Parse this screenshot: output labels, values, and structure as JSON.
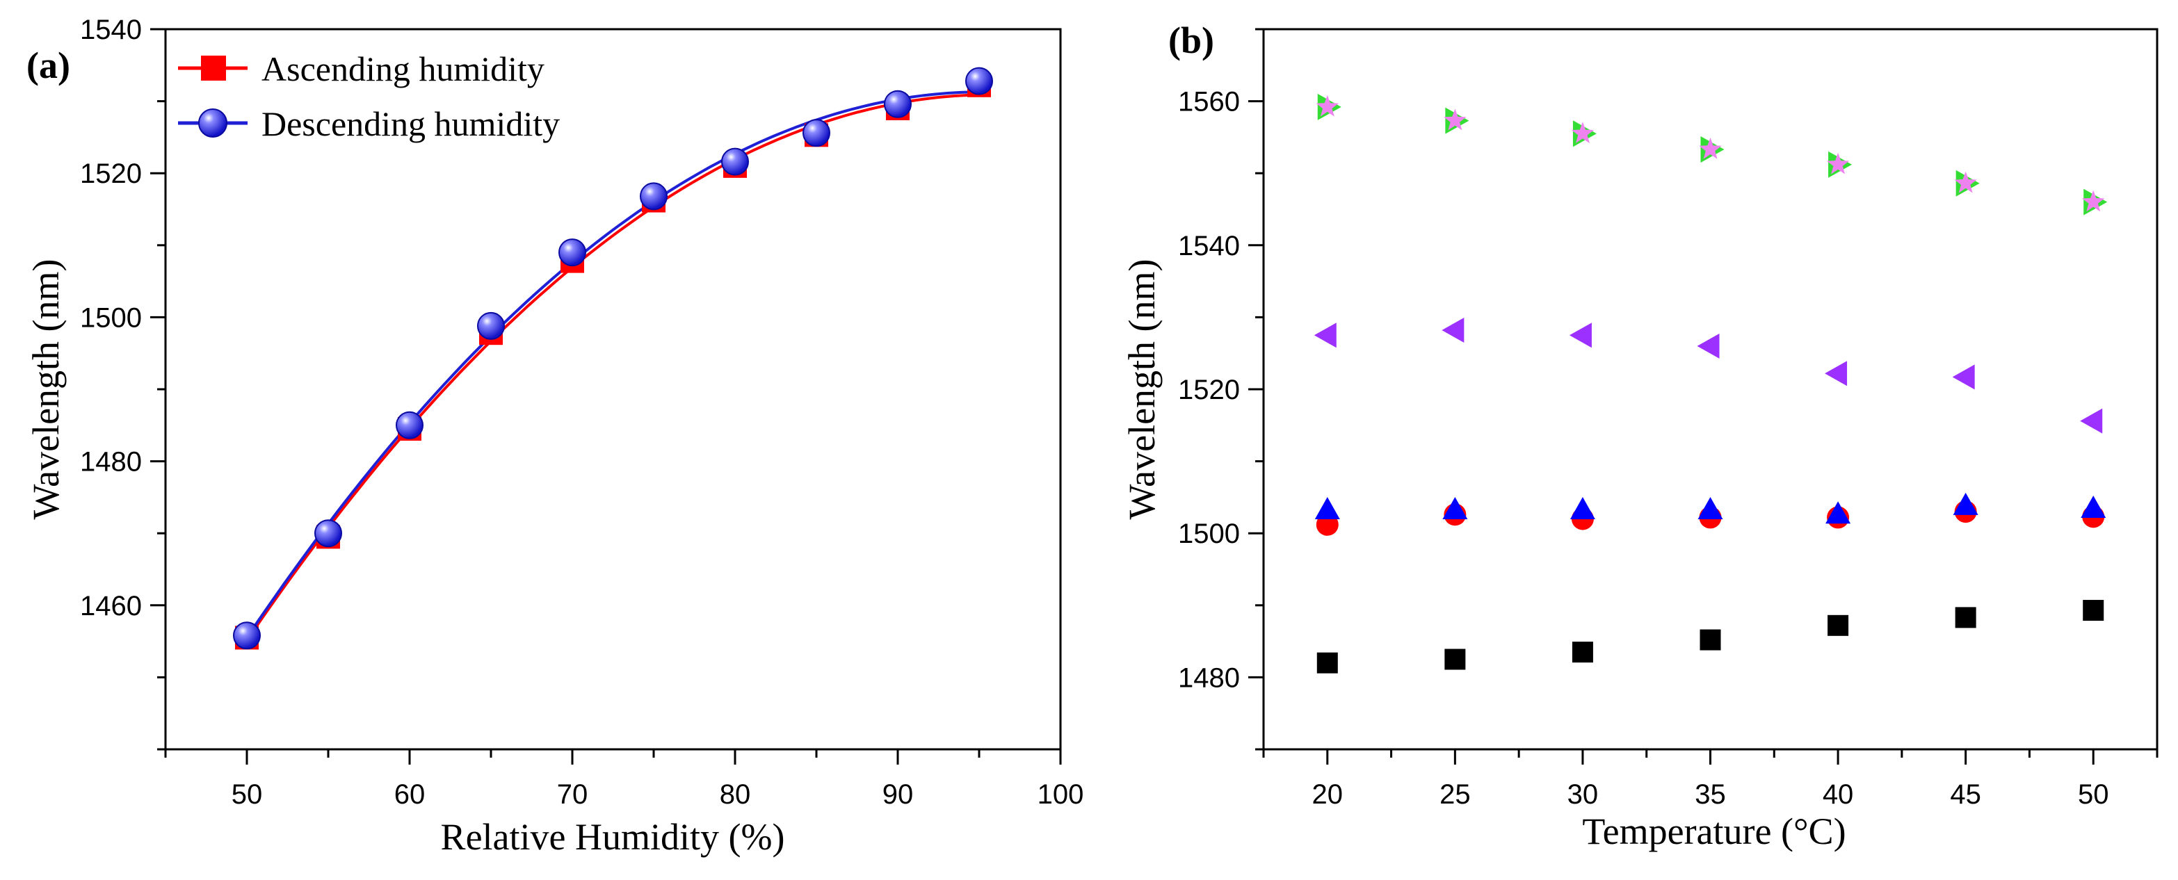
{
  "chart_data": [
    {
      "type": "line",
      "panel_label": "(a)",
      "xlabel": "Relative Humidity (%)",
      "ylabel": "Wavelength (nm)",
      "xlim": [
        45,
        100
      ],
      "ylim": [
        1440,
        1540
      ],
      "xticks": [
        50,
        60,
        70,
        80,
        90,
        100
      ],
      "yticks": [
        1460,
        1480,
        1500,
        1520,
        1540
      ],
      "xtick_labels": [
        "50",
        "60",
        "70",
        "80",
        "90",
        "100"
      ],
      "ytick_labels": [
        "1460",
        "1480",
        "1500",
        "1520",
        "1540"
      ],
      "legend_position": "top-left",
      "series": [
        {
          "name": "Ascending humidity",
          "marker": "square",
          "color": "#ff0000",
          "x": [
            50,
            55,
            60,
            65,
            70,
            75,
            80,
            85,
            90,
            95
          ],
          "y": [
            1455.5,
            1469.5,
            1484.5,
            1497.8,
            1507.8,
            1516.2,
            1521.0,
            1525.3,
            1529.0,
            1532.2
          ]
        },
        {
          "name": "Descending humidity",
          "marker": "sphere",
          "color": "#1f1fd6",
          "x": [
            50,
            55,
            60,
            65,
            70,
            75,
            80,
            85,
            90,
            95
          ],
          "y": [
            1455.8,
            1470.0,
            1485.0,
            1498.8,
            1509.0,
            1516.8,
            1521.6,
            1525.6,
            1529.6,
            1532.8
          ]
        }
      ]
    },
    {
      "type": "scatter",
      "panel_label": "(b)",
      "xlabel": "Temperature (°C)",
      "ylabel": "Wavelength (nm)",
      "xlim": [
        17.5,
        52.5
      ],
      "ylim": [
        1470,
        1570
      ],
      "xticks": [
        20,
        25,
        30,
        35,
        40,
        45,
        50
      ],
      "yticks": [
        1480,
        1500,
        1520,
        1540,
        1560
      ],
      "xtick_labels": [
        "20",
        "25",
        "30",
        "35",
        "40",
        "45",
        "50"
      ],
      "ytick_labels": [
        "1480",
        "1500",
        "1520",
        "1540",
        "1560"
      ],
      "series": [
        {
          "name": "black squares",
          "marker": "square",
          "color": "#000000",
          "x": [
            20,
            25,
            30,
            35,
            40,
            45,
            50
          ],
          "y": [
            1482.0,
            1482.5,
            1483.5,
            1485.2,
            1487.2,
            1488.3,
            1489.3
          ]
        },
        {
          "name": "red circles",
          "marker": "circle",
          "color": "#ff0000",
          "x": [
            20,
            25,
            30,
            35,
            40,
            45,
            50
          ],
          "y": [
            1501.2,
            1502.6,
            1502.0,
            1502.2,
            1502.2,
            1503.0,
            1502.3
          ]
        },
        {
          "name": "blue up-triangles",
          "marker": "triangle-up",
          "color": "#0000ff",
          "x": [
            20,
            25,
            30,
            35,
            40,
            45,
            50
          ],
          "y": [
            1503.2,
            1503.2,
            1503.2,
            1503.2,
            1502.6,
            1503.8,
            1503.4
          ]
        },
        {
          "name": "purple left-triangles",
          "marker": "triangle-left",
          "color": "#9b30ff",
          "x": [
            20,
            25,
            30,
            35,
            40,
            45,
            50
          ],
          "y": [
            1527.5,
            1528.2,
            1527.5,
            1526.0,
            1522.2,
            1521.7,
            1515.6
          ]
        },
        {
          "name": "green right-triangles",
          "marker": "triangle-right",
          "color": "#33dd33",
          "x": [
            20,
            25,
            30,
            35,
            40,
            45,
            50
          ],
          "y": [
            1559.2,
            1557.3,
            1555.5,
            1553.3,
            1551.2,
            1548.6,
            1546.0
          ]
        },
        {
          "name": "pink stars",
          "marker": "star",
          "color": "#ee82ee",
          "x": [
            20,
            25,
            30,
            35,
            40,
            45,
            50
          ],
          "y": [
            1559.2,
            1557.3,
            1555.5,
            1553.3,
            1551.2,
            1548.6,
            1546.0
          ]
        }
      ]
    }
  ]
}
